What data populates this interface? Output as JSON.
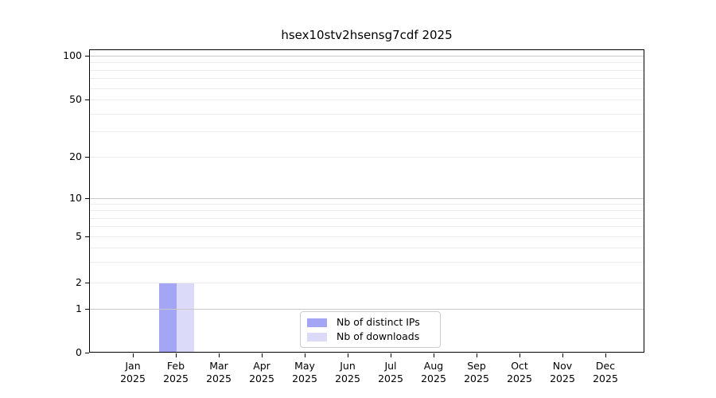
{
  "title": "hsex10stv2hsensg7cdf 2025",
  "chart_data": {
    "type": "bar",
    "title": "hsex10stv2hsensg7cdf 2025",
    "categories": [
      "Jan 2025",
      "Feb 2025",
      "Mar 2025",
      "Apr 2025",
      "May 2025",
      "Jun 2025",
      "Jul 2025",
      "Aug 2025",
      "Sep 2025",
      "Oct 2025",
      "Nov 2025",
      "Dec 2025"
    ],
    "series": [
      {
        "name": "Nb of distinct IPs",
        "color": "#a5a5f6",
        "values": [
          0,
          2,
          0,
          0,
          0,
          0,
          0,
          0,
          0,
          0,
          0,
          0
        ]
      },
      {
        "name": "Nb of downloads",
        "color": "#dbdbf9",
        "values": [
          0,
          2,
          0,
          0,
          0,
          0,
          0,
          0,
          0,
          0,
          0,
          0
        ]
      }
    ],
    "xlabel": "",
    "ylabel": "",
    "yticks": [
      0,
      1,
      2,
      5,
      10,
      20,
      50,
      100
    ],
    "ylim": [
      0,
      110
    ],
    "yscale": "log-like",
    "grid": true,
    "legend_position": "lower center inside plot"
  },
  "colors": {
    "major_gridline": "#c8c8c8",
    "minor_gridline": "#ececec",
    "axis": "#000000",
    "background": "#ffffff"
  }
}
